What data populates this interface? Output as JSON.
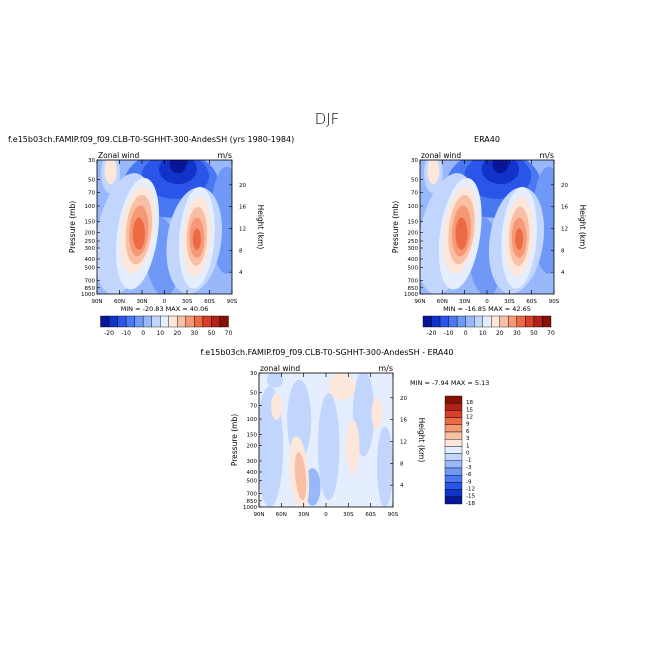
{
  "page_title": "DJF",
  "colors": {
    "ramp": [
      "#08169a",
      "#1133c9",
      "#2a55e8",
      "#4a78f2",
      "#7099f7",
      "#99b8fb",
      "#c2d6fd",
      "#e4eefe",
      "#fde6da",
      "#f9bfa5",
      "#f59876",
      "#ec6b45",
      "#d6402a",
      "#b3221a",
      "#861207"
    ],
    "diff_ramp": [
      "#08169a",
      "#1133c9",
      "#2a55e8",
      "#4a78f2",
      "#7099f7",
      "#99b8fb",
      "#c2d6fd",
      "#e4eefe",
      "#fde6da",
      "#f9bfa5",
      "#f59876",
      "#ec6b45",
      "#d6402a",
      "#b3221a",
      "#861207"
    ]
  },
  "chart_data": [
    {
      "type": "heatmap",
      "title": "f.e15b03ch.FAMIP.f09_f09.CLB-T0-SGHHT-300-AndesSH (yrs 1980-1984)",
      "left_label": "Zonal wind",
      "right_label": "m/s",
      "ylabel": "Pressure (mb)",
      "y2label": "Height (km)",
      "x_ticks": [
        "90N",
        "60N",
        "30N",
        "0",
        "30S",
        "60S",
        "90S"
      ],
      "y_ticks": [
        "30",
        "50",
        "70",
        "100",
        "150",
        "200",
        "250",
        "300",
        "400",
        "500",
        "700",
        "850",
        "1000"
      ],
      "y2_ticks": [
        "20",
        "16",
        "12",
        "8",
        "4"
      ],
      "stats": "MIN = -20.83   MAX = 40.06",
      "legend_labels": [
        "-20",
        "-10",
        "0",
        "10",
        "20",
        "30",
        "50",
        "70"
      ],
      "min": -20.83,
      "max": 40.06
    },
    {
      "type": "heatmap",
      "title": "ERA40",
      "left_label": "zonal wind",
      "right_label": "m/s",
      "ylabel": "Pressure (mb)",
      "y2label": "Height (km)",
      "x_ticks": [
        "90N",
        "60N",
        "30N",
        "0",
        "30S",
        "60S",
        "90S"
      ],
      "y_ticks": [
        "30",
        "50",
        "70",
        "100",
        "150",
        "200",
        "250",
        "300",
        "400",
        "500",
        "700",
        "850",
        "1000"
      ],
      "y2_ticks": [
        "20",
        "16",
        "12",
        "8",
        "4"
      ],
      "stats": "MIN = -16.85   MAX = 42.65",
      "legend_labels": [
        "-20",
        "-10",
        "0",
        "10",
        "20",
        "30",
        "50",
        "70"
      ],
      "min": -16.85,
      "max": 42.65
    },
    {
      "type": "heatmap",
      "title": "f.e15b03ch.FAMIP.f09_f09.CLB-T0-SGHHT-300-AndesSH - ERA40",
      "left_label": "zonal wind",
      "right_label": "m/s",
      "ylabel": "Pressure (mb)",
      "y2label": "Height (km)",
      "x_ticks": [
        "90N",
        "60N",
        "30N",
        "0",
        "30S",
        "60S",
        "90S"
      ],
      "y_ticks": [
        "30",
        "50",
        "70",
        "100",
        "150",
        "200",
        "300",
        "400",
        "500",
        "700",
        "850",
        "1000"
      ],
      "y2_ticks": [
        "20",
        "16",
        "12",
        "8",
        "4"
      ],
      "stats": "MIN =  -7.94   MAX =   5.13",
      "legend_labels": [
        "18",
        "15",
        "12",
        "9",
        "6",
        "3",
        "1",
        "0",
        "-1",
        "-3",
        "-6",
        "-9",
        "-12",
        "-15",
        "-18"
      ],
      "min": -7.94,
      "max": 5.13
    }
  ]
}
